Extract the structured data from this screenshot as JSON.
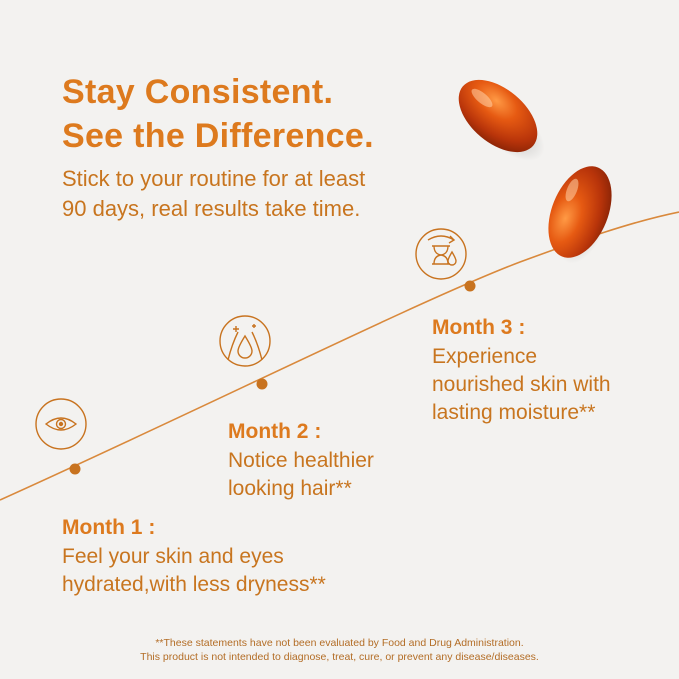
{
  "headline": {
    "line1": "Stay Consistent.",
    "line2": "See the Difference."
  },
  "subtext": {
    "line1": "Stick to your routine for at least",
    "line2": "90 days, real results take time."
  },
  "milestones": [
    {
      "title": "Month 1 :",
      "desc_line1": "Feel your skin and eyes",
      "desc_line2": "hydrated,with less dryness**",
      "icon": "eye-icon"
    },
    {
      "title": "Month 2 :",
      "desc_line1": "Notice healthier",
      "desc_line2": "looking hair**",
      "icon": "hair-drop-icon"
    },
    {
      "title": "Month 3 :",
      "desc_line1": "Experience",
      "desc_line2": "nourished skin with",
      "desc_line3": "lasting moisture**",
      "icon": "hourglass-drop-icon"
    }
  ],
  "disclaimer": {
    "line1": "**These statements have not been evaluated by Food and Drug Administration.",
    "line2": "This product is not intended to diagnose, treat, cure, or prevent any disease/diseases."
  },
  "colors": {
    "accent": "#dd7a1e",
    "text": "#c8751f",
    "background": "#f3f2f0"
  }
}
